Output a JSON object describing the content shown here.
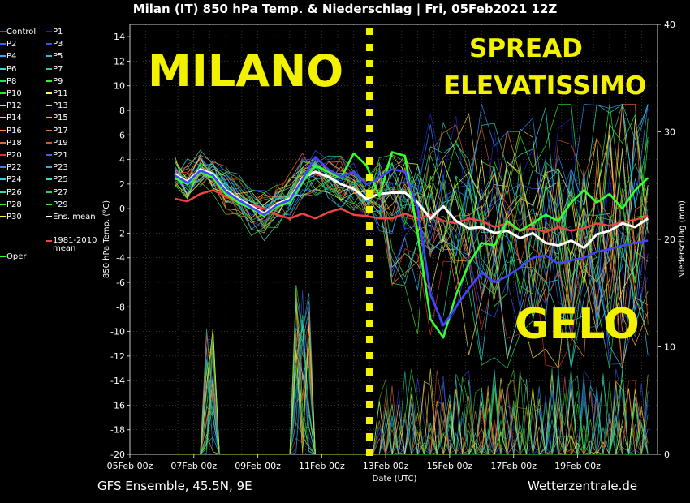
{
  "title": "Milan  (IT)  850 hPa Temp. & Niederschlag | Fri, 05Feb2021 12Z",
  "footer": {
    "left": "GFS Ensemble, 45.5N, 9E",
    "right": "Wetterzentrale.de"
  },
  "legend": [
    {
      "label": "Control",
      "color": "#4444ff"
    },
    {
      "label": "P1",
      "color": "#2222cc"
    },
    {
      "label": "P2",
      "color": "#3366ff"
    },
    {
      "label": "P3",
      "color": "#3355dd"
    },
    {
      "label": "P4",
      "color": "#33aaff"
    },
    {
      "label": "P5",
      "color": "#33bbdd"
    },
    {
      "label": "P6",
      "color": "#33ddcc"
    },
    {
      "label": "P7",
      "color": "#33cc99"
    },
    {
      "label": "P8",
      "color": "#22dd66"
    },
    {
      "label": "P9",
      "color": "#33ee33"
    },
    {
      "label": "P10",
      "color": "#22ee22"
    },
    {
      "label": "P11",
      "color": "#ffff66"
    },
    {
      "label": "P12",
      "color": "#eedd55"
    },
    {
      "label": "P13",
      "color": "#eecc44"
    },
    {
      "label": "P14",
      "color": "#ffcc33"
    },
    {
      "label": "P15",
      "color": "#ffaa33"
    },
    {
      "label": "P16",
      "color": "#ee8844"
    },
    {
      "label": "P17",
      "color": "#ee7733"
    },
    {
      "label": "P18",
      "color": "#ee6633"
    },
    {
      "label": "P19",
      "color": "#dd5522"
    },
    {
      "label": "P20",
      "color": "#dd3322"
    },
    {
      "label": "P21",
      "color": "#3366ee"
    },
    {
      "label": "P22",
      "color": "#3388ff"
    },
    {
      "label": "P23",
      "color": "#33aaee"
    },
    {
      "label": "P24",
      "color": "#33ccee"
    },
    {
      "label": "P25",
      "color": "#33ddcc"
    },
    {
      "label": "P26",
      "color": "#33dd99"
    },
    {
      "label": "P27",
      "color": "#33cc66"
    },
    {
      "label": "P28",
      "color": "#44dd33"
    },
    {
      "label": "P29",
      "color": "#33ee22"
    },
    {
      "label": "P30",
      "color": "#ffee33"
    },
    {
      "label": "Ens. mean",
      "color": "#ffffff"
    },
    {
      "label": "1981-2010 mean",
      "color": "#ee4444"
    },
    {
      "label": "Oper",
      "color": "#33ff33"
    }
  ],
  "annotations": {
    "city": "MILANO",
    "spread_line1": "SPREAD",
    "spread_line2": "ELEVATISSIMO",
    "cold": "GELO"
  },
  "chart_data": {
    "type": "line",
    "ylabel": "850 hPa Temp. (°C)",
    "y2label": "Niederschlag (mm)",
    "xlabel": "Date (UTC)",
    "ylim": [
      -20,
      15
    ],
    "y2lim": [
      0,
      40
    ],
    "yticks": [
      14,
      12,
      10,
      8,
      6,
      4,
      2,
      0,
      -2,
      -4,
      -6,
      -8,
      -10,
      -12,
      -14,
      -16,
      -18,
      -20
    ],
    "y2ticks": [
      0,
      10,
      20,
      30,
      40
    ],
    "xlim": [
      0,
      16.5
    ],
    "xticks": [
      {
        "day": 0,
        "label": "05Feb 00z"
      },
      {
        "day": 2,
        "label": "07Feb 00z"
      },
      {
        "day": 4,
        "label": "09Feb 00z"
      },
      {
        "day": 6,
        "label": "11Feb 00z"
      },
      {
        "day": 8,
        "label": "13Feb 00z"
      },
      {
        "day": 10,
        "label": "15Feb 00z"
      },
      {
        "day": 12,
        "label": "17Feb 00z"
      },
      {
        "day": 14,
        "label": "19Feb 00z"
      }
    ],
    "grid": "dotted",
    "marker_day": 7.5,
    "series": [
      {
        "name": "1981-2010 mean",
        "color": "#ee4444",
        "days": [
          1.4,
          1.8,
          2.2,
          2.6,
          3.0,
          3.4,
          3.8,
          4.2,
          4.6,
          5.0,
          5.4,
          5.8,
          6.2,
          6.6,
          7.0,
          7.4,
          7.8,
          8.2,
          8.6,
          9.0,
          9.4,
          9.8,
          10.2,
          10.6,
          11.0,
          11.4,
          11.8,
          12.2,
          12.6,
          13.0,
          13.4,
          13.8,
          14.2,
          14.6,
          15.0,
          15.4,
          15.8,
          16.2
        ],
        "values": [
          0.8,
          0.6,
          1.2,
          1.5,
          1.0,
          0.5,
          0.3,
          0.0,
          -0.5,
          -0.8,
          -0.4,
          -0.8,
          -0.3,
          0.0,
          -0.5,
          -0.6,
          -0.8,
          -0.8,
          -0.4,
          -0.8,
          -0.5,
          -1.0,
          -1.2,
          -0.8,
          -1.0,
          -1.5,
          -1.2,
          -1.8,
          -1.6,
          -1.9,
          -1.5,
          -1.8,
          -1.6,
          -1.2,
          -1.4,
          -1.1,
          -0.9,
          -0.6
        ]
      },
      {
        "name": "Ens. mean",
        "color": "#ffffff",
        "days": [
          1.4,
          1.8,
          2.2,
          2.6,
          3.0,
          3.4,
          3.8,
          4.2,
          4.6,
          5.0,
          5.4,
          5.8,
          6.2,
          6.6,
          7.0,
          7.4,
          7.8,
          8.2,
          8.6,
          9.0,
          9.4,
          9.8,
          10.2,
          10.6,
          11.0,
          11.4,
          11.8,
          12.2,
          12.6,
          13.0,
          13.4,
          13.8,
          14.2,
          14.6,
          15.0,
          15.4,
          15.8,
          16.2
        ],
        "values": [
          2.8,
          2.2,
          3.2,
          2.8,
          1.5,
          0.8,
          0.2,
          -0.4,
          0.4,
          0.8,
          2.5,
          3.0,
          2.6,
          2.0,
          1.6,
          0.8,
          1.2,
          1.3,
          1.3,
          0.5,
          -0.8,
          0.2,
          -1.0,
          -1.6,
          -1.5,
          -2.0,
          -1.8,
          -2.4,
          -2.0,
          -2.8,
          -3.0,
          -2.6,
          -3.2,
          -2.1,
          -1.8,
          -1.2,
          -1.5,
          -0.8
        ]
      },
      {
        "name": "Oper",
        "color": "#33ff33",
        "days": [
          1.4,
          1.8,
          2.2,
          2.6,
          3.0,
          3.4,
          3.8,
          4.2,
          4.6,
          5.0,
          5.4,
          5.8,
          6.2,
          6.6,
          7.0,
          7.4,
          7.8,
          8.2,
          8.6,
          9.0,
          9.4,
          9.8,
          10.2,
          10.6,
          11.0,
          11.4,
          11.8,
          12.2,
          12.6,
          13.0,
          13.4,
          13.8,
          14.2,
          14.6,
          15.0,
          15.4,
          15.8,
          16.2
        ],
        "values": [
          2.5,
          2.0,
          3.0,
          2.5,
          1.2,
          0.5,
          0.0,
          -0.6,
          0.2,
          0.5,
          2.2,
          3.5,
          3.0,
          2.5,
          4.5,
          3.5,
          1.0,
          4.6,
          4.3,
          -2.0,
          -9.0,
          -10.5,
          -7.0,
          -4.5,
          -2.8,
          -3.0,
          -1.0,
          -1.8,
          -1.2,
          -0.5,
          -1.0,
          0.5,
          1.5,
          0.5,
          1.2,
          0.0,
          1.5,
          2.5
        ]
      },
      {
        "name": "Control",
        "color": "#4444ff",
        "days": [
          1.4,
          1.8,
          2.2,
          2.6,
          3.0,
          3.4,
          3.8,
          4.2,
          4.6,
          5.0,
          5.4,
          5.8,
          6.2,
          6.6,
          7.0,
          7.4,
          7.8,
          8.2,
          8.6,
          9.0,
          9.4,
          9.8,
          10.2,
          10.6,
          11.0,
          11.4,
          11.8,
          12.2,
          12.6,
          13.0,
          13.4,
          13.8,
          14.2,
          14.6,
          15.0,
          15.4,
          15.8,
          16.2
        ],
        "values": [
          2.7,
          2.1,
          3.1,
          2.7,
          1.4,
          0.7,
          0.1,
          -0.5,
          0.3,
          0.7,
          2.4,
          4.2,
          3.2,
          2.6,
          3.0,
          2.0,
          2.5,
          3.2,
          3.0,
          0.0,
          -7.0,
          -9.5,
          -8.0,
          -6.5,
          -5.2,
          -6.0,
          -5.5,
          -4.8,
          -4.0,
          -3.8,
          -4.5,
          -4.2,
          -4.0,
          -3.5,
          -3.3,
          -3.0,
          -2.8,
          -2.6
        ]
      }
    ]
  }
}
